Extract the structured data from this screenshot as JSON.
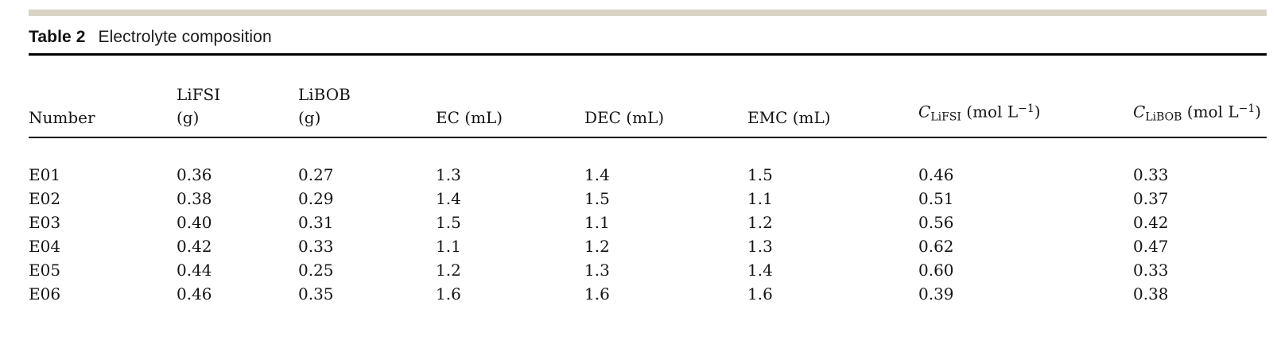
{
  "caption": {
    "label": "Table 2",
    "title": "Electrolyte composition"
  },
  "table": {
    "columns": [
      {
        "name": "number",
        "line1": [],
        "line2": [
          {
            "t": "Number",
            "s": ""
          }
        ]
      },
      {
        "name": "lifsi-g",
        "line1": [
          {
            "t": "LiFSI",
            "s": ""
          }
        ],
        "line2": [
          {
            "t": "(g)",
            "s": ""
          }
        ]
      },
      {
        "name": "libob-g",
        "line1": [
          {
            "t": "LiBOB",
            "s": ""
          }
        ],
        "line2": [
          {
            "t": "(g)",
            "s": ""
          }
        ]
      },
      {
        "name": "ec-ml",
        "line1": [],
        "line2": [
          {
            "t": "EC (mL)",
            "s": ""
          }
        ]
      },
      {
        "name": "dec-ml",
        "line1": [],
        "line2": [
          {
            "t": "DEC (mL)",
            "s": ""
          }
        ]
      },
      {
        "name": "emc-ml",
        "line1": [],
        "line2": [
          {
            "t": "EMC (mL)",
            "s": ""
          }
        ]
      },
      {
        "name": "c-lifsi",
        "line1": [],
        "line2": [
          {
            "t": "C",
            "s": "i"
          },
          {
            "t": "LiFSI",
            "s": "sub"
          },
          {
            "t": " (mol L",
            "s": ""
          },
          {
            "t": "−1",
            "s": "sup"
          },
          {
            "t": ")",
            "s": ""
          }
        ]
      },
      {
        "name": "c-libob",
        "line1": [],
        "line2": [
          {
            "t": "C",
            "s": "i"
          },
          {
            "t": "LiBOB",
            "s": "sub"
          },
          {
            "t": " (mol L",
            "s": ""
          },
          {
            "t": "−1",
            "s": "sup"
          },
          {
            "t": ")",
            "s": ""
          }
        ]
      }
    ],
    "rows": [
      [
        "E01",
        "0.36",
        "0.27",
        "1.3",
        "1.4",
        "1.5",
        "0.46",
        "0.33"
      ],
      [
        "E02",
        "0.38",
        "0.29",
        "1.4",
        "1.5",
        "1.1",
        "0.51",
        "0.37"
      ],
      [
        "E03",
        "0.40",
        "0.31",
        "1.5",
        "1.1",
        "1.2",
        "0.56",
        "0.42"
      ],
      [
        "E04",
        "0.42",
        "0.33",
        "1.1",
        "1.2",
        "1.3",
        "0.62",
        "0.47"
      ],
      [
        "E05",
        "0.44",
        "0.25",
        "1.2",
        "1.3",
        "1.4",
        "0.60",
        "0.33"
      ],
      [
        "E06",
        "0.46",
        "0.35",
        "1.6",
        "1.6",
        "1.6",
        "0.39",
        "0.38"
      ]
    ]
  }
}
